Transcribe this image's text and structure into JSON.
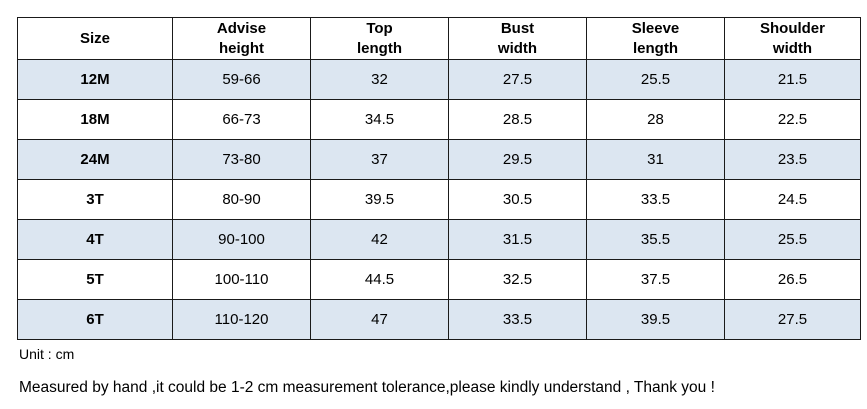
{
  "table": {
    "headers": [
      "Size",
      "Advise\nheight",
      "Top\nlength",
      "Bust\nwidth",
      "Sleeve\nlength",
      "Shoulder\nwidth"
    ],
    "rows": [
      [
        "12M",
        "59-66",
        "32",
        "27.5",
        "25.5",
        "21.5"
      ],
      [
        "18M",
        "66-73",
        "34.5",
        "28.5",
        "28",
        "22.5"
      ],
      [
        "24M",
        "73-80",
        "37",
        "29.5",
        "31",
        "23.5"
      ],
      [
        "3T",
        "80-90",
        "39.5",
        "30.5",
        "33.5",
        "24.5"
      ],
      [
        "4T",
        "90-100",
        "42",
        "31.5",
        "35.5",
        "25.5"
      ],
      [
        "5T",
        "100-110",
        "44.5",
        "32.5",
        "37.5",
        "26.5"
      ],
      [
        "6T",
        "110-120",
        "47",
        "33.5",
        "39.5",
        "27.5"
      ]
    ],
    "colors": {
      "shaded_row": "#dce6f1",
      "plain_row": "#ffffff",
      "border": "#1a1a1a"
    }
  },
  "notes": {
    "unit": "Unit : cm",
    "tolerance": "Measured by hand ,it could be 1-2 cm measurement tolerance,please kindly understand , Thank you !"
  }
}
